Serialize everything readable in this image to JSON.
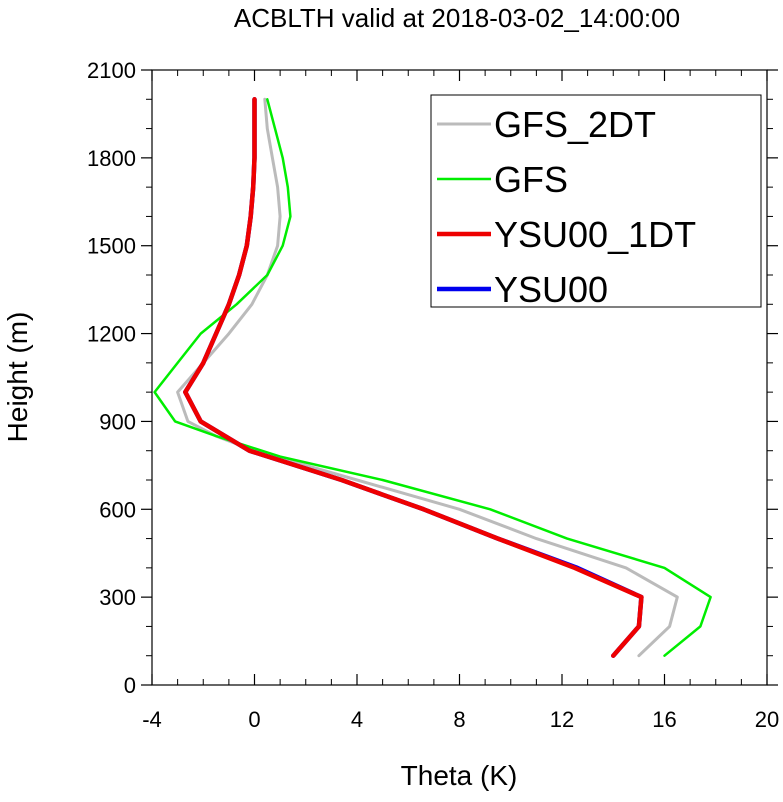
{
  "chart_data": {
    "type": "line",
    "title": "ACBLTH valid at 2018-03-02_14:00:00",
    "xlabel": "Theta (K)",
    "ylabel": "Height (m)",
    "xlim": [
      -4,
      20
    ],
    "ylim": [
      0,
      2100
    ],
    "xticks": [
      -4,
      0,
      4,
      8,
      12,
      16,
      20
    ],
    "yticks": [
      0,
      300,
      600,
      900,
      1200,
      1500,
      1800,
      2100
    ],
    "legend_position": "top-right",
    "grid": false,
    "series": [
      {
        "name": "GFS_2DT",
        "color": "#bbbbbb",
        "width": 3,
        "points": [
          [
            15.0,
            100
          ],
          [
            16.2,
            200
          ],
          [
            16.5,
            300
          ],
          [
            14.5,
            400
          ],
          [
            11.0,
            500
          ],
          [
            8.0,
            600
          ],
          [
            4.0,
            700
          ],
          [
            0.0,
            800
          ],
          [
            -1.5,
            850
          ],
          [
            -2.6,
            900
          ],
          [
            -3.0,
            1000
          ],
          [
            -2.0,
            1100
          ],
          [
            -1.0,
            1200
          ],
          [
            -0.1,
            1300
          ],
          [
            0.5,
            1400
          ],
          [
            0.9,
            1500
          ],
          [
            1.0,
            1600
          ],
          [
            0.9,
            1700
          ],
          [
            0.7,
            1800
          ],
          [
            0.5,
            1900
          ],
          [
            0.4,
            2000
          ]
        ]
      },
      {
        "name": "GFS",
        "color": "#00ee00",
        "width": 2.5,
        "points": [
          [
            16.0,
            100
          ],
          [
            17.4,
            200
          ],
          [
            17.8,
            300
          ],
          [
            16.0,
            400
          ],
          [
            12.2,
            500
          ],
          [
            9.2,
            600
          ],
          [
            5.0,
            700
          ],
          [
            1.0,
            780
          ],
          [
            -1.5,
            850
          ],
          [
            -3.1,
            900
          ],
          [
            -3.9,
            1000
          ],
          [
            -3.0,
            1100
          ],
          [
            -2.1,
            1200
          ],
          [
            -0.7,
            1300
          ],
          [
            0.5,
            1400
          ],
          [
            1.1,
            1500
          ],
          [
            1.4,
            1600
          ],
          [
            1.3,
            1700
          ],
          [
            1.1,
            1800
          ],
          [
            0.8,
            1900
          ],
          [
            0.5,
            2000
          ]
        ]
      },
      {
        "name": "YSU00_1DT",
        "color": "#ee0000",
        "width": 4.5,
        "points": [
          [
            14.0,
            100
          ],
          [
            15.0,
            200
          ],
          [
            15.1,
            300
          ],
          [
            12.5,
            400
          ],
          [
            9.5,
            500
          ],
          [
            6.6,
            600
          ],
          [
            3.4,
            700
          ],
          [
            -0.2,
            800
          ],
          [
            -2.1,
            900
          ],
          [
            -2.7,
            1000
          ],
          [
            -2.0,
            1100
          ],
          [
            -1.5,
            1200
          ],
          [
            -1.0,
            1300
          ],
          [
            -0.6,
            1400
          ],
          [
            -0.3,
            1500
          ],
          [
            -0.15,
            1600
          ],
          [
            -0.05,
            1700
          ],
          [
            0.0,
            1800
          ],
          [
            0.0,
            1900
          ],
          [
            0.0,
            2000
          ]
        ]
      },
      {
        "name": "YSU00",
        "color": "#0000ee",
        "width": 4.5,
        "points": [
          [
            14.0,
            100
          ],
          [
            15.0,
            200
          ],
          [
            15.1,
            300
          ],
          [
            12.6,
            400
          ],
          [
            9.5,
            500
          ],
          [
            6.6,
            600
          ],
          [
            3.4,
            700
          ],
          [
            -0.2,
            800
          ],
          [
            -2.1,
            900
          ],
          [
            -2.7,
            1000
          ],
          [
            -2.0,
            1100
          ],
          [
            -1.5,
            1200
          ],
          [
            -1.0,
            1300
          ],
          [
            -0.6,
            1400
          ],
          [
            -0.3,
            1500
          ],
          [
            -0.15,
            1600
          ],
          [
            -0.05,
            1700
          ],
          [
            0.0,
            1800
          ],
          [
            0.0,
            1900
          ],
          [
            0.0,
            2000
          ]
        ]
      }
    ],
    "draw_order": [
      "GFS_2DT",
      "GFS",
      "YSU00",
      "YSU00_1DT"
    ]
  }
}
